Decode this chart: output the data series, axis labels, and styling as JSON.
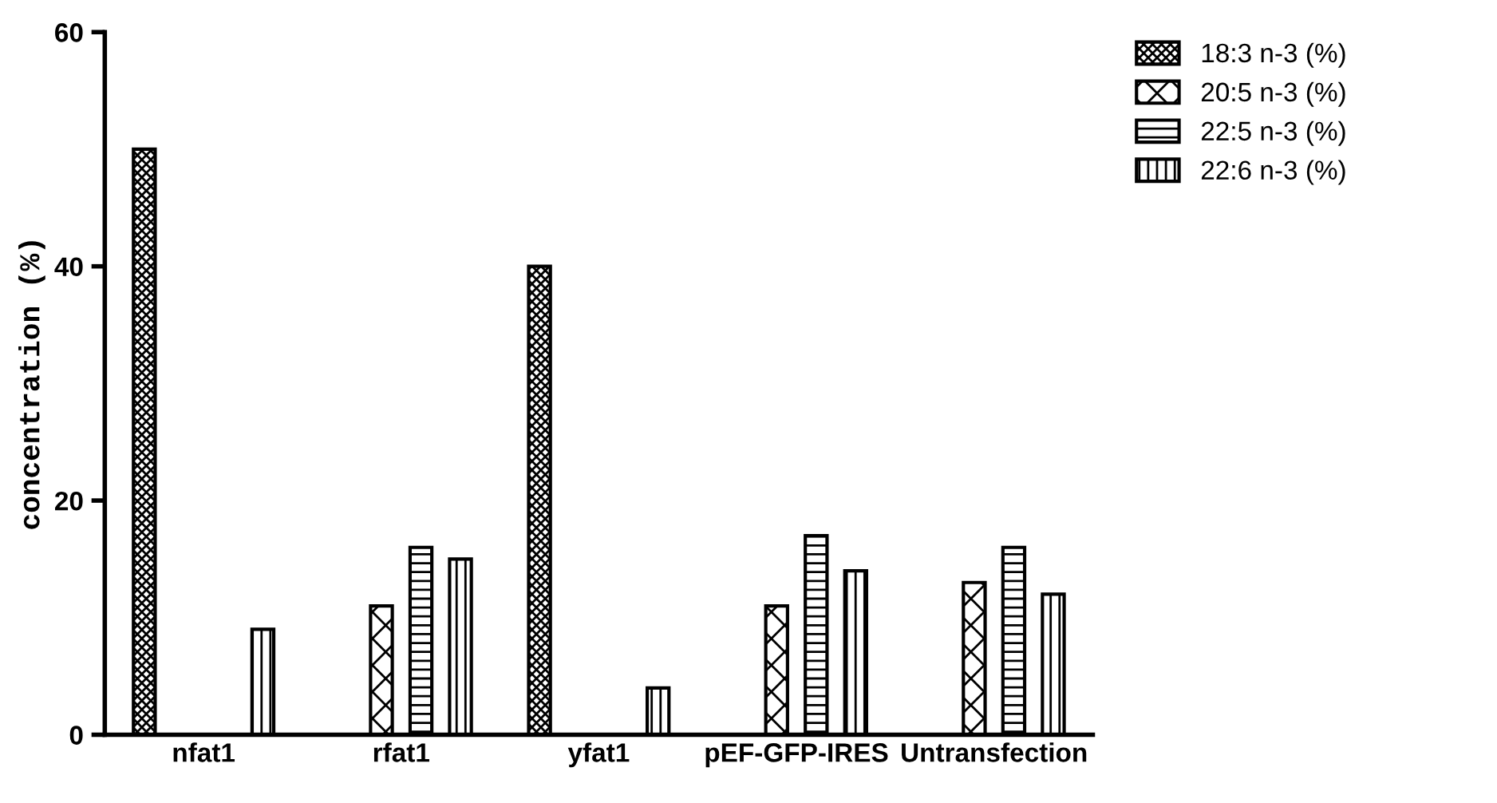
{
  "chart_data": {
    "type": "bar",
    "ylabel": "concentration (%)",
    "categories": [
      "nfat1",
      "rfat1",
      "yfat1",
      "pEF-GFP-IRES",
      "Untransfection"
    ],
    "series": [
      {
        "name": "18:3 n-3 (%)",
        "color": "#000000",
        "values": [
          50,
          0,
          40,
          0,
          0
        ]
      },
      {
        "name": "20:5 n-3 (%)",
        "color": "#000000",
        "values": [
          0,
          11,
          0,
          11,
          13
        ]
      },
      {
        "name": "22:5 n-3 (%)",
        "color": "#000000",
        "values": [
          0,
          16,
          0,
          17,
          16
        ]
      },
      {
        "name": "22:6 n-3 (%)",
        "color": "#000000",
        "values": [
          9,
          15,
          4,
          14,
          12
        ]
      }
    ],
    "ylim": [
      0,
      60
    ],
    "yticks": [
      0,
      20,
      40,
      60
    ],
    "grid": false,
    "legend": "top right"
  }
}
